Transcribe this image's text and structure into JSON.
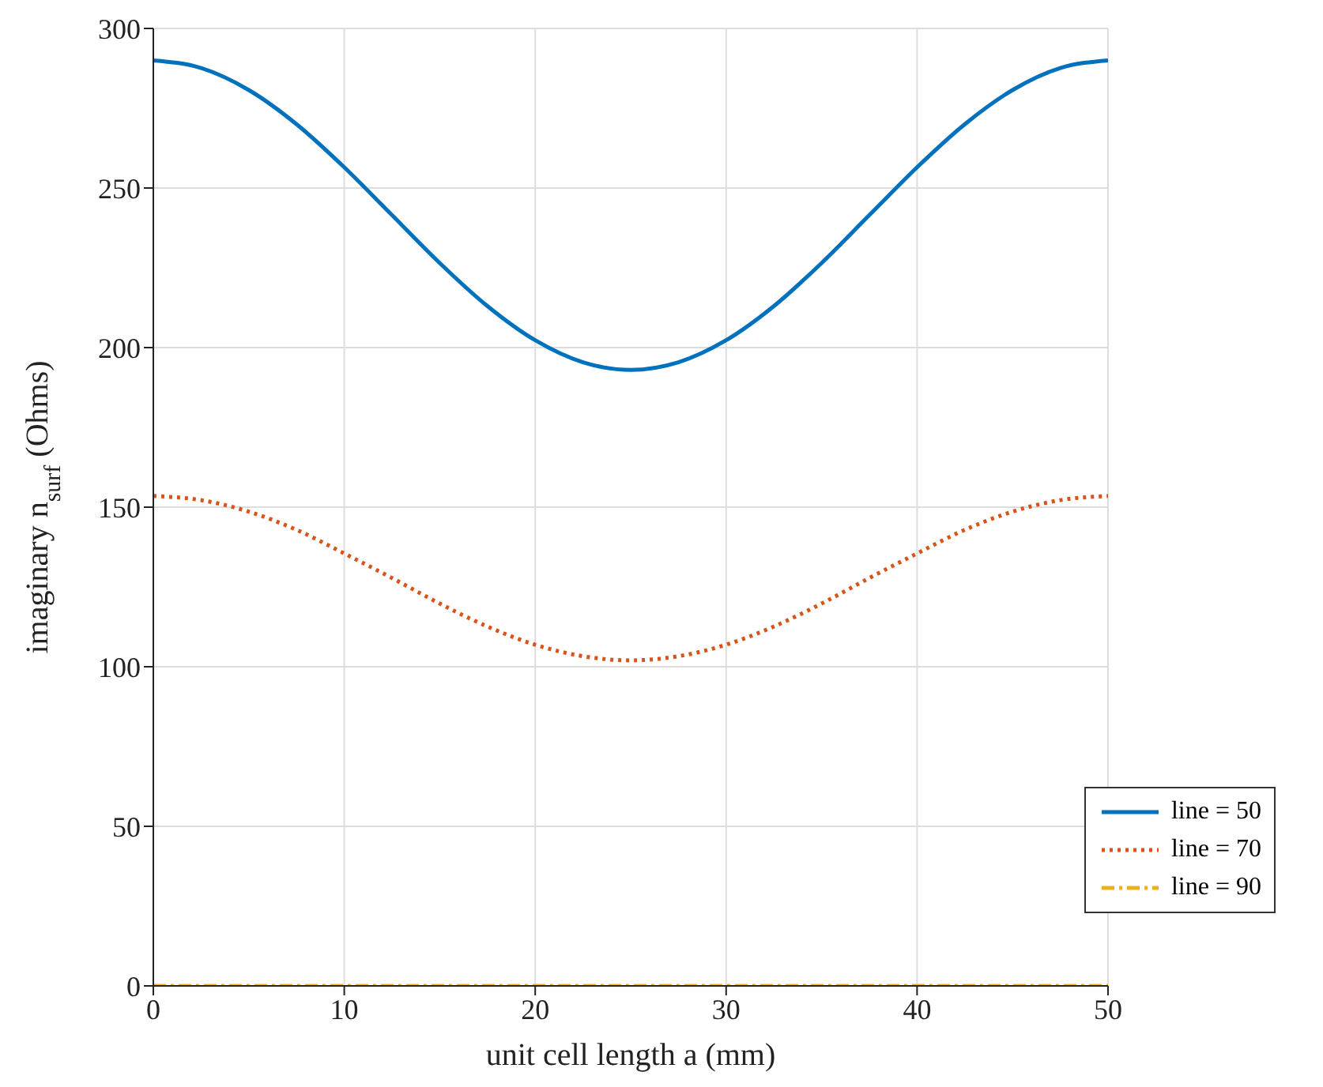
{
  "chart_data": {
    "type": "line",
    "xlabel": "unit cell length a (mm)",
    "ylabel": "imaginary n$_{surf}$ (Ohms)",
    "x": [
      0,
      2.5,
      5,
      7.5,
      10,
      12.5,
      15,
      17.5,
      20,
      22.5,
      25,
      27.5,
      30,
      32.5,
      35,
      37.5,
      40,
      42.5,
      45,
      47.5,
      50
    ],
    "series": [
      {
        "name": "line = 50",
        "color": "#0072bd",
        "line_style": "solid",
        "values": [
          290,
          287.6,
          280.7,
          270,
          256.5,
          241.5,
          226.5,
          213,
          202.3,
          195.4,
          193,
          195.4,
          202.3,
          213,
          226.5,
          241.5,
          256.5,
          270,
          280.7,
          287.6,
          290
        ]
      },
      {
        "name": "line = 70",
        "color": "#d95319",
        "line_style": "dotted",
        "values": [
          153.5,
          152.2,
          148.6,
          142.9,
          135.5,
          127.8,
          119.8,
          112.6,
          106.9,
          103.3,
          102,
          103.3,
          106.9,
          112.6,
          119.8,
          127.8,
          135.5,
          142.9,
          148.6,
          152.2,
          153.5
        ]
      },
      {
        "name": "line = 90",
        "color": "#edb120",
        "line_style": "dashed",
        "values": [
          0,
          0,
          0,
          0,
          0,
          0,
          0,
          0,
          0,
          0,
          0,
          0,
          0,
          0,
          0,
          0,
          0,
          0,
          0,
          0,
          0
        ]
      }
    ],
    "xlim": [
      0,
      50
    ],
    "xticks": [
      0,
      10,
      20,
      30,
      40,
      50
    ],
    "ylim": [
      0,
      300
    ],
    "yticks": [
      0,
      50,
      100,
      150,
      200,
      250,
      300
    ],
    "grid": true,
    "legend": "bottom right",
    "marker": "none"
  }
}
